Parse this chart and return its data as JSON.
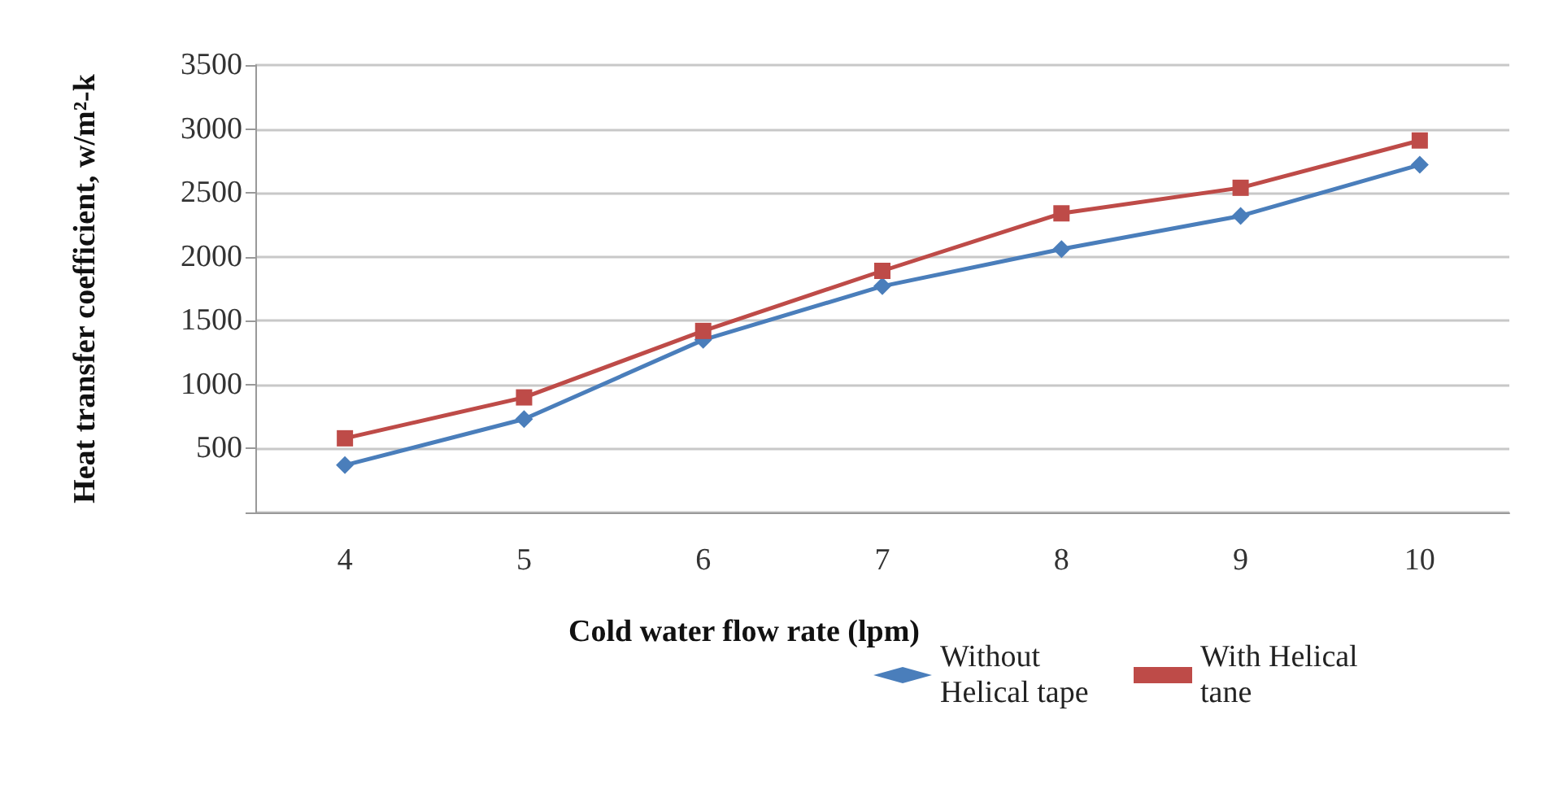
{
  "chart_data": {
    "type": "line",
    "xlabel": "Cold water flow rate (lpm)",
    "ylabel": "Heat transfer coefficient, w/m²-k",
    "categories": [
      "4",
      "5",
      "6",
      "7",
      "8",
      "9",
      "10"
    ],
    "series": [
      {
        "name": "Without Helical tape",
        "color": "#4a7ebb",
        "marker": "diamond",
        "values": [
          370,
          730,
          1350,
          1770,
          2060,
          2320,
          2720
        ]
      },
      {
        "name": "With Helical tane",
        "color": "#be4b48",
        "marker": "square",
        "values": [
          580,
          900,
          1420,
          1890,
          2340,
          2540,
          2910
        ]
      }
    ],
    "ylim": [
      0,
      3500
    ],
    "yticks": [
      {
        "value": 0,
        "label": null
      },
      500,
      1000,
      1500,
      2000,
      2500,
      3000,
      3500
    ],
    "grid": "y",
    "legend": "bottom right",
    "line_style": "solid"
  }
}
